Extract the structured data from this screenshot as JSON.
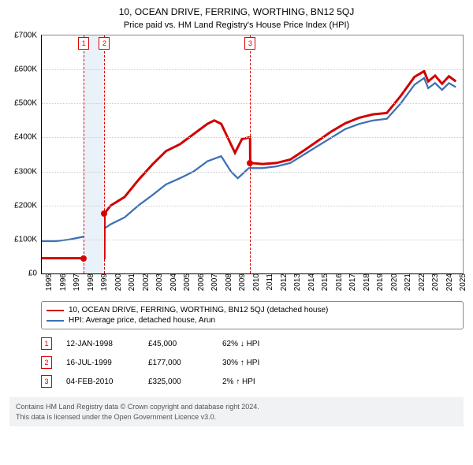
{
  "title": "10, OCEAN DRIVE, FERRING, WORTHING, BN12 5QJ",
  "subtitle": "Price paid vs. HM Land Registry's House Price Index (HPI)",
  "chart": {
    "type": "line",
    "x_min": 1995,
    "x_max": 2025.5,
    "y_min": 0,
    "y_max": 700000,
    "y_ticks": [
      0,
      100000,
      200000,
      300000,
      400000,
      500000,
      600000,
      700000
    ],
    "y_labels": [
      "£0",
      "£100K",
      "£200K",
      "£300K",
      "£400K",
      "£500K",
      "£600K",
      "£700K"
    ],
    "x_ticks": [
      1995,
      1996,
      1997,
      1998,
      1999,
      2000,
      2001,
      2002,
      2003,
      2004,
      2005,
      2006,
      2007,
      2008,
      2009,
      2010,
      2011,
      2012,
      2013,
      2014,
      2015,
      2016,
      2017,
      2018,
      2019,
      2020,
      2021,
      2022,
      2023,
      2024,
      2025
    ],
    "background_color": "#ffffff",
    "grid_color": "#cccccc",
    "axis_color": "#000000",
    "band": {
      "start": 1998.04,
      "end": 1999.54,
      "color": "#eaf2f9"
    },
    "vlines": [
      {
        "x": 1998.04,
        "color": "#d00"
      },
      {
        "x": 1999.54,
        "color": "#d00"
      },
      {
        "x": 2010.1,
        "color": "#d00"
      }
    ],
    "event_badges": [
      {
        "n": "1",
        "x": 1998.04
      },
      {
        "n": "2",
        "x": 1999.54
      },
      {
        "n": "3",
        "x": 2010.1
      }
    ],
    "markers": [
      {
        "x": 1998.04,
        "y": 45000,
        "color": "#d00"
      },
      {
        "x": 1999.54,
        "y": 177000,
        "color": "#d00"
      },
      {
        "x": 2010.1,
        "y": 325000,
        "color": "#d00"
      }
    ],
    "series": [
      {
        "name": "hpi",
        "color": "#3b6fb6",
        "width": 1.2,
        "points": [
          [
            1995,
            95000
          ],
          [
            1996,
            95000
          ],
          [
            1997,
            100000
          ],
          [
            1998,
            108000
          ],
          [
            1999,
            118000
          ],
          [
            2000,
            145000
          ],
          [
            2001,
            165000
          ],
          [
            2002,
            200000
          ],
          [
            2003,
            230000
          ],
          [
            2004,
            262000
          ],
          [
            2005,
            280000
          ],
          [
            2006,
            300000
          ],
          [
            2007,
            330000
          ],
          [
            2008,
            345000
          ],
          [
            2008.7,
            300000
          ],
          [
            2009.2,
            280000
          ],
          [
            2010,
            310000
          ],
          [
            2011,
            310000
          ],
          [
            2012,
            315000
          ],
          [
            2013,
            325000
          ],
          [
            2014,
            350000
          ],
          [
            2015,
            375000
          ],
          [
            2016,
            400000
          ],
          [
            2017,
            425000
          ],
          [
            2018,
            440000
          ],
          [
            2019,
            450000
          ],
          [
            2020,
            455000
          ],
          [
            2021,
            500000
          ],
          [
            2022,
            555000
          ],
          [
            2022.7,
            575000
          ],
          [
            2023,
            545000
          ],
          [
            2023.5,
            560000
          ],
          [
            2024,
            540000
          ],
          [
            2024.5,
            560000
          ],
          [
            2025,
            548000
          ]
        ]
      },
      {
        "name": "property",
        "color": "#d00000",
        "width": 1.6,
        "points": [
          [
            1995,
            45000
          ],
          [
            1998.03,
            45000
          ],
          [
            1998.04,
            45000
          ],
          [
            1999.53,
            45000
          ],
          [
            1999.54,
            177000
          ],
          [
            2000,
            200000
          ],
          [
            2001,
            225000
          ],
          [
            2002,
            275000
          ],
          [
            2003,
            320000
          ],
          [
            2004,
            360000
          ],
          [
            2005,
            380000
          ],
          [
            2006,
            410000
          ],
          [
            2007,
            440000
          ],
          [
            2007.5,
            450000
          ],
          [
            2008,
            440000
          ],
          [
            2008.7,
            380000
          ],
          [
            2009,
            355000
          ],
          [
            2009.5,
            395000
          ],
          [
            2010,
            400000
          ],
          [
            2010.09,
            400000
          ],
          [
            2010.1,
            325000
          ],
          [
            2011,
            322000
          ],
          [
            2012,
            325000
          ],
          [
            2013,
            335000
          ],
          [
            2014,
            362000
          ],
          [
            2015,
            390000
          ],
          [
            2016,
            418000
          ],
          [
            2017,
            442000
          ],
          [
            2018,
            458000
          ],
          [
            2019,
            468000
          ],
          [
            2020,
            472000
          ],
          [
            2021,
            522000
          ],
          [
            2022,
            578000
          ],
          [
            2022.7,
            595000
          ],
          [
            2023,
            565000
          ],
          [
            2023.5,
            582000
          ],
          [
            2024,
            558000
          ],
          [
            2024.5,
            580000
          ],
          [
            2025,
            565000
          ]
        ]
      }
    ]
  },
  "legend": {
    "items": [
      {
        "color": "#d00000",
        "label": "10, OCEAN DRIVE, FERRING, WORTHING, BN12 5QJ (detached house)"
      },
      {
        "color": "#3b6fb6",
        "label": "HPI: Average price, detached house, Arun"
      }
    ]
  },
  "events": [
    {
      "n": "1",
      "date": "12-JAN-1998",
      "price": "£45,000",
      "delta": "62% ↓ HPI"
    },
    {
      "n": "2",
      "date": "16-JUL-1999",
      "price": "£177,000",
      "delta": "30% ↑ HPI"
    },
    {
      "n": "3",
      "date": "04-FEB-2010",
      "price": "£325,000",
      "delta": "2% ↑ HPI"
    }
  ],
  "footer": {
    "line1": "Contains HM Land Registry data © Crown copyright and database right 2024.",
    "line2": "This data is licensed under the Open Government Licence v3.0."
  }
}
